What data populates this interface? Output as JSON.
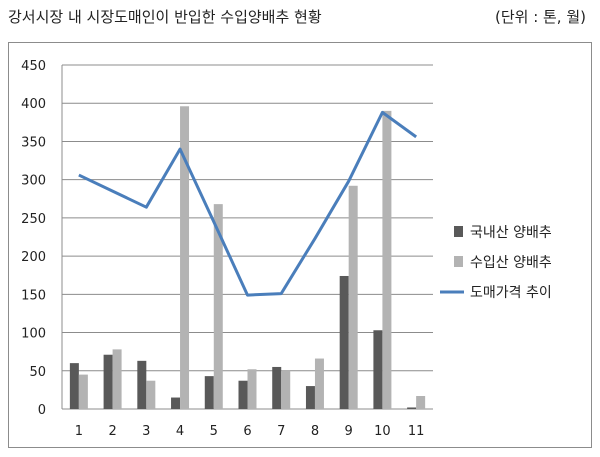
{
  "header": {
    "title": "강서시장 내 시장도매인이 반입한 수입양배추 현황",
    "unit": "(단위 : 톤, 월)"
  },
  "chart_data": {
    "type": "bar",
    "title": "강서시장 내 시장도매인이 반입한 수입양배추 현황",
    "xlabel": "",
    "ylabel": "",
    "categories": [
      "1",
      "2",
      "3",
      "4",
      "5",
      "6",
      "7",
      "8",
      "9",
      "10",
      "11"
    ],
    "ylim": [
      0,
      450
    ],
    "yticks": [
      "0",
      "50",
      "100",
      "150",
      "200",
      "250",
      "300",
      "350",
      "400",
      "450"
    ],
    "grid": true,
    "legend_position": "right",
    "series": [
      {
        "name": "국내산 양배추",
        "type": "bar",
        "color": "#595959",
        "values": [
          60,
          71,
          63,
          15,
          43,
          37,
          55,
          30,
          174,
          103,
          2
        ]
      },
      {
        "name": "수입산 양배추",
        "type": "bar",
        "color": "#b3b3b3",
        "values": [
          45,
          78,
          37,
          396,
          268,
          52,
          50,
          66,
          292,
          390,
          17
        ]
      },
      {
        "name": "도매가격 추이",
        "type": "line",
        "color": "#4a7ebb",
        "values": [
          306,
          285,
          264,
          340,
          245,
          149,
          151,
          223,
          298,
          388,
          356
        ]
      }
    ]
  }
}
